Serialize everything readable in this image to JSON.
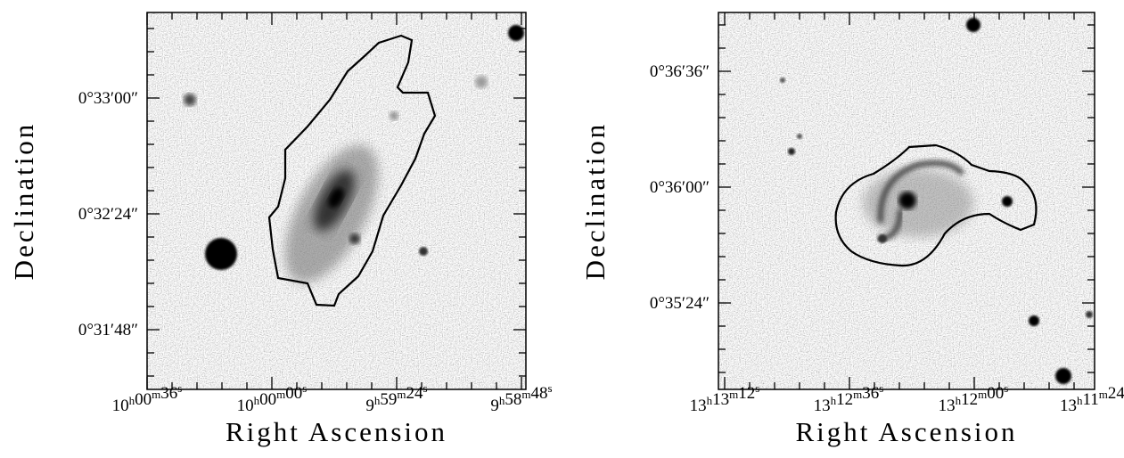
{
  "panels": [
    {
      "x_label": "Right Ascension",
      "y_label": "Declination",
      "x_ticks": [
        "10h00m36s",
        "10h00m00s",
        "9h59m24s",
        "9h58m48s"
      ],
      "y_ticks": [
        "0°33′00″",
        "0°32′24″",
        "0°31′48″"
      ]
    },
    {
      "x_label": "Right Ascension",
      "y_label": "Declination",
      "x_ticks": [
        "13h13m12s",
        "13h12m36s",
        "13h12m00s",
        "13h11m24s"
      ],
      "y_ticks": [
        "0°36′36″",
        "0°36′00″",
        "0°35′24″"
      ]
    }
  ]
}
